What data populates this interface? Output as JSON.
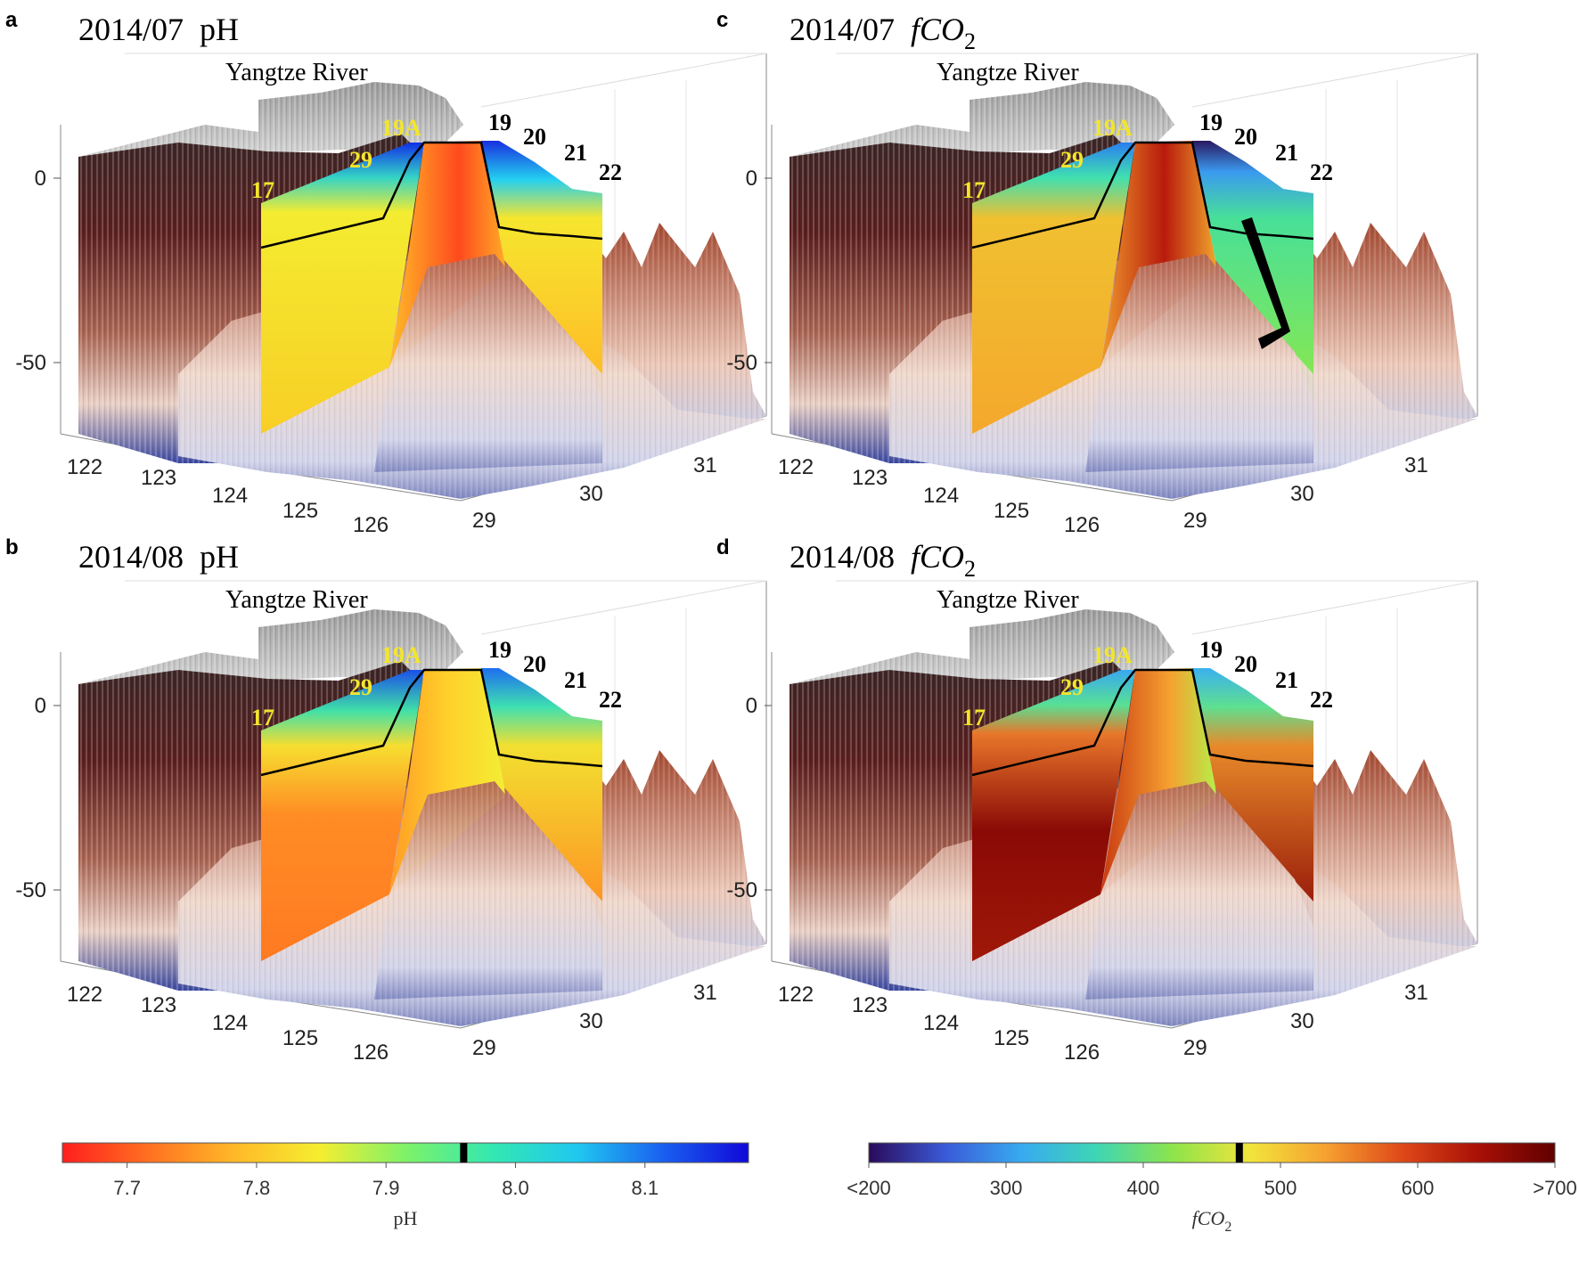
{
  "figure": {
    "panels": [
      {
        "letter": "a",
        "date": "2014/07",
        "param": "pH",
        "param_sub": "",
        "region": "Yangtze River",
        "var": "pH",
        "month": "07"
      },
      {
        "letter": "b",
        "date": "2014/08",
        "param": "pH",
        "param_sub": "",
        "region": "Yangtze River",
        "var": "pH",
        "month": "08"
      },
      {
        "letter": "c",
        "date": "2014/07",
        "param": "fCO",
        "param_sub": "2",
        "region": "Yangtze River",
        "var": "fco2",
        "month": "07"
      },
      {
        "letter": "d",
        "date": "2014/08",
        "param": "fCO",
        "param_sub": "2",
        "region": "Yangtze River",
        "var": "fco2",
        "month": "08"
      }
    ],
    "stations_yellow": [
      "17",
      "29",
      "19A"
    ],
    "stations_black": [
      "19",
      "20",
      "21",
      "22"
    ],
    "axes": {
      "depth_ticks": [
        0,
        -50
      ],
      "lon_ticks": [
        122,
        123,
        124,
        125,
        126
      ],
      "lat_ticks": [
        29,
        30,
        31
      ]
    },
    "colorbars": [
      {
        "name": "pH-colorbar",
        "label": "pH",
        "label_sub": "",
        "ticks": [
          "7.7",
          "7.8",
          "7.9",
          "8.0",
          "8.1"
        ],
        "min": 7.65,
        "max": 8.18,
        "tick_values": [
          7.7,
          7.8,
          7.9,
          8.0,
          8.1
        ],
        "marker_value": 7.96,
        "stops": [
          "#ff1e1e",
          "#ff7020",
          "#ffb828",
          "#f5ee30",
          "#7ef268",
          "#34e8b0",
          "#20c8f0",
          "#1a60f0",
          "#1008d8"
        ]
      },
      {
        "name": "fco2-colorbar",
        "label": "fCO",
        "label_sub": "2",
        "ticks": [
          "<200",
          "300",
          "400",
          "500",
          "600",
          ">700"
        ],
        "min": 200,
        "max": 700,
        "tick_values": [
          200,
          300,
          400,
          500,
          600,
          700
        ],
        "marker_value": 470,
        "stops": [
          "#2a0a5a",
          "#3a5ad8",
          "#38aaf0",
          "#3ed6b4",
          "#8ee44a",
          "#f2e43c",
          "#f6a030",
          "#de4818",
          "#a81006",
          "#600000"
        ]
      }
    ]
  }
}
